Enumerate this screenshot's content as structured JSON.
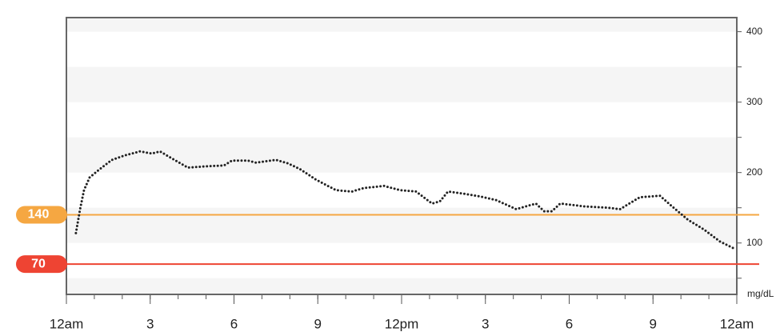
{
  "chart_data": {
    "type": "line",
    "y_unit": "mg/dL",
    "xlim": [
      0,
      24
    ],
    "xticks": [
      {
        "value": 0,
        "label": "12am"
      },
      3,
      6,
      9,
      {
        "value": 12,
        "label": "12pm"
      },
      3,
      6,
      9,
      {
        "value": 24,
        "label": "12am"
      }
    ],
    "ylim": [
      27,
      420
    ],
    "yticks": [
      100,
      200,
      300,
      400
    ],
    "minor_yticks": [
      50,
      150,
      250,
      350
    ],
    "targets": [
      {
        "value": 140,
        "label": "140",
        "color": "#f5a742"
      },
      {
        "value": 70,
        "label": "70",
        "color": "#ee4433"
      }
    ],
    "series": [
      {
        "color": "#222222",
        "x": [
          0.34,
          0.49,
          0.63,
          0.83,
          1.2,
          1.63,
          2.06,
          2.63,
          3.06,
          3.35,
          3.78,
          4.35,
          5.07,
          5.64,
          5.93,
          6.5,
          6.79,
          7.5,
          7.93,
          8.36,
          8.93,
          9.65,
          10.22,
          10.65,
          11.37,
          11.94,
          12.52,
          13.09,
          13.37,
          13.66,
          14.23,
          14.81,
          15.38,
          16.1,
          16.81,
          17.1,
          17.38,
          17.68,
          18.53,
          19.39,
          19.82,
          20.53,
          21.25,
          21.68,
          22.25,
          22.83,
          23.4,
          23.91
        ],
        "values": [
          114,
          148,
          175,
          193,
          205,
          218,
          224,
          230,
          227,
          230,
          220,
          207,
          209,
          210,
          217,
          217,
          214,
          218,
          213,
          205,
          190,
          175,
          173,
          178,
          181,
          175,
          173,
          156,
          159,
          173,
          170,
          166,
          161,
          148,
          156,
          145,
          145,
          156,
          152,
          150,
          148,
          165,
          167,
          152,
          133,
          119,
          102,
          92
        ]
      }
    ]
  }
}
